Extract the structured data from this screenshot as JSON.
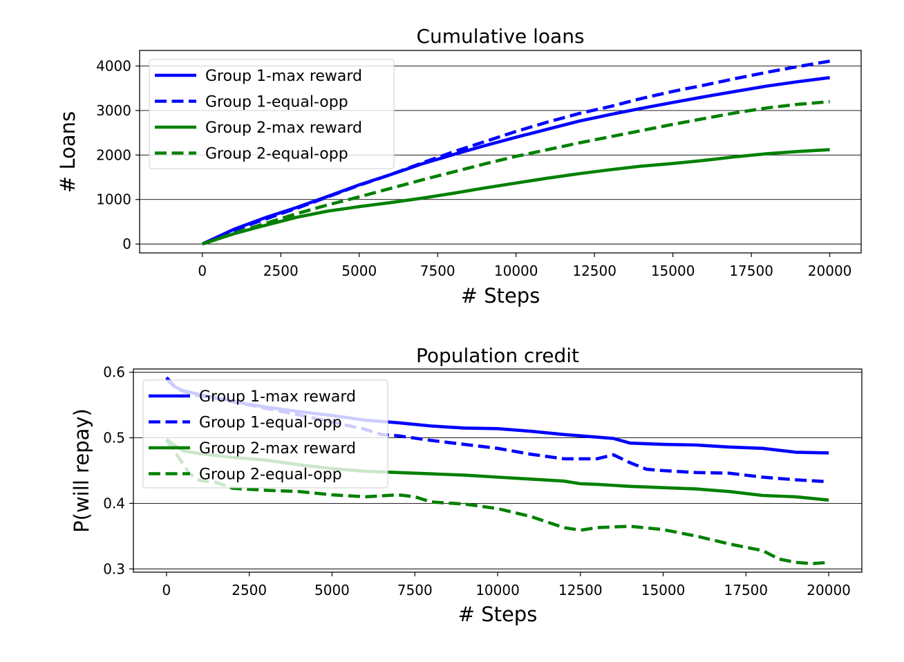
{
  "figure": {
    "background": "#ffffff"
  },
  "chart_data": [
    {
      "type": "line",
      "title": "Cumulative loans",
      "xlabel": "# Steps",
      "ylabel": "# Loans",
      "xlim": [
        -2000,
        21000
      ],
      "ylim": [
        -200,
        4350
      ],
      "xticks": [
        0,
        2500,
        5000,
        7500,
        10000,
        12500,
        15000,
        17500,
        20000
      ],
      "xtick_labels": [
        "0",
        "2500",
        "5000",
        "7500",
        "10000",
        "12500",
        "15000",
        "17500",
        "20000"
      ],
      "yticks": [
        0,
        1000,
        2000,
        3000,
        4000
      ],
      "ytick_labels": [
        "0",
        "1000",
        "2000",
        "3000",
        "4000"
      ],
      "grid": "horizontal",
      "legend": "upper-left",
      "series": [
        {
          "name": "Group 1-max reward",
          "color": "#0000ff",
          "style": "solid",
          "x": [
            0,
            1000,
            2000,
            3000,
            4000,
            5000,
            6000,
            7000,
            8000,
            9000,
            10000,
            11000,
            12000,
            13000,
            14000,
            15000,
            16000,
            17000,
            18000,
            19000,
            20000
          ],
          "y": [
            0,
            330,
            590,
            820,
            1070,
            1330,
            1560,
            1800,
            2010,
            2210,
            2400,
            2580,
            2760,
            2910,
            3050,
            3180,
            3310,
            3430,
            3550,
            3650,
            3740
          ]
        },
        {
          "name": "Group 1-equal-opp",
          "color": "#0000ff",
          "style": "dashed",
          "x": [
            0,
            1000,
            2000,
            3000,
            4000,
            5000,
            6000,
            7000,
            8000,
            9000,
            10000,
            11000,
            12000,
            13000,
            14000,
            15000,
            16000,
            17000,
            18000,
            19000,
            20000
          ],
          "y": [
            0,
            310,
            560,
            800,
            1060,
            1320,
            1560,
            1820,
            2070,
            2300,
            2530,
            2740,
            2930,
            3090,
            3270,
            3430,
            3570,
            3720,
            3860,
            3990,
            4110
          ]
        },
        {
          "name": "Group 2-max reward",
          "color": "#008000",
          "style": "solid",
          "x": [
            0,
            1000,
            2000,
            3000,
            4000,
            5000,
            6000,
            7000,
            8000,
            9000,
            10000,
            11000,
            12000,
            13000,
            14000,
            15000,
            16000,
            17000,
            18000,
            19000,
            20000
          ],
          "y": [
            0,
            230,
            420,
            600,
            740,
            840,
            930,
            1030,
            1140,
            1260,
            1370,
            1480,
            1580,
            1670,
            1750,
            1810,
            1880,
            1960,
            2030,
            2080,
            2120
          ]
        },
        {
          "name": "Group 2-equal-opp",
          "color": "#008000",
          "style": "dashed",
          "x": [
            0,
            1000,
            2000,
            3000,
            4000,
            5000,
            6000,
            7000,
            8000,
            9000,
            10000,
            11000,
            12000,
            13000,
            14000,
            15000,
            16000,
            17000,
            18000,
            19000,
            20000
          ],
          "y": [
            0,
            240,
            460,
            680,
            880,
            1060,
            1250,
            1440,
            1620,
            1800,
            1970,
            2120,
            2270,
            2410,
            2550,
            2690,
            2820,
            2950,
            3060,
            3140,
            3200
          ]
        }
      ]
    },
    {
      "type": "line",
      "title": "Population credit",
      "xlabel": "# Steps",
      "ylabel": "P(will repay)",
      "xlim": [
        -1000,
        21000
      ],
      "ylim": [
        0.295,
        0.605
      ],
      "xticks": [
        0,
        2500,
        5000,
        7500,
        10000,
        12500,
        15000,
        17500,
        20000
      ],
      "xtick_labels": [
        "0",
        "2500",
        "5000",
        "7500",
        "10000",
        "12500",
        "15000",
        "17500",
        "20000"
      ],
      "yticks": [
        0.3,
        0.4,
        0.5,
        0.6
      ],
      "ytick_labels": [
        "0.3",
        "0.4",
        "0.5",
        "0.6"
      ],
      "grid": "horizontal",
      "legend": "upper-left",
      "series": [
        {
          "name": "Group 1-max reward",
          "color": "#0000ff",
          "style": "solid",
          "x": [
            0,
            250,
            500,
            1000,
            1500,
            2000,
            2500,
            3000,
            4000,
            5000,
            6000,
            7000,
            8000,
            9000,
            10000,
            11000,
            12000,
            13000,
            13500,
            14000,
            15000,
            16000,
            17000,
            18000,
            19000,
            20000
          ],
          "y": [
            0.592,
            0.578,
            0.572,
            0.566,
            0.561,
            0.556,
            0.551,
            0.547,
            0.54,
            0.534,
            0.527,
            0.523,
            0.518,
            0.515,
            0.514,
            0.51,
            0.505,
            0.501,
            0.499,
            0.492,
            0.49,
            0.489,
            0.486,
            0.484,
            0.478,
            0.477
          ]
        },
        {
          "name": "Group 1-equal-opp",
          "color": "#0000ff",
          "style": "dashed",
          "x": [
            0,
            300,
            800,
            1500,
            2000,
            3000,
            4000,
            5000,
            6000,
            6500,
            7000,
            8000,
            9000,
            10000,
            11000,
            12000,
            13000,
            13500,
            14000,
            14500,
            15000,
            16000,
            17000,
            18000,
            19000,
            20000
          ],
          "y": [
            0.59,
            0.575,
            0.566,
            0.56,
            0.555,
            0.545,
            0.535,
            0.524,
            0.513,
            0.505,
            0.503,
            0.496,
            0.49,
            0.484,
            0.475,
            0.468,
            0.468,
            0.474,
            0.462,
            0.452,
            0.45,
            0.447,
            0.446,
            0.44,
            0.436,
            0.433
          ]
        },
        {
          "name": "Group 2-max reward",
          "color": "#008000",
          "style": "solid",
          "x": [
            0,
            200,
            500,
            1000,
            2000,
            3000,
            4000,
            5000,
            6000,
            7000,
            8000,
            9000,
            10000,
            11000,
            12000,
            12500,
            13000,
            14000,
            15000,
            16000,
            17000,
            18000,
            19000,
            20000
          ],
          "y": [
            0.498,
            0.49,
            0.48,
            0.476,
            0.47,
            0.466,
            0.459,
            0.453,
            0.449,
            0.447,
            0.445,
            0.443,
            0.44,
            0.437,
            0.434,
            0.43,
            0.429,
            0.426,
            0.424,
            0.422,
            0.418,
            0.412,
            0.41,
            0.405
          ]
        },
        {
          "name": "Group 2-equal-opp",
          "color": "#008000",
          "style": "dashed",
          "x": [
            0,
            300,
            700,
            1000,
            1500,
            2000,
            3000,
            4000,
            5000,
            6000,
            7000,
            7500,
            8000,
            9000,
            10000,
            11000,
            12000,
            12500,
            13000,
            14000,
            15000,
            16000,
            17000,
            17500,
            18000,
            18500,
            19000,
            19500,
            20000
          ],
          "y": [
            0.497,
            0.475,
            0.445,
            0.435,
            0.432,
            0.423,
            0.42,
            0.418,
            0.413,
            0.41,
            0.413,
            0.41,
            0.402,
            0.399,
            0.392,
            0.38,
            0.363,
            0.359,
            0.363,
            0.365,
            0.36,
            0.35,
            0.338,
            0.333,
            0.328,
            0.315,
            0.31,
            0.308,
            0.31
          ]
        }
      ]
    }
  ]
}
